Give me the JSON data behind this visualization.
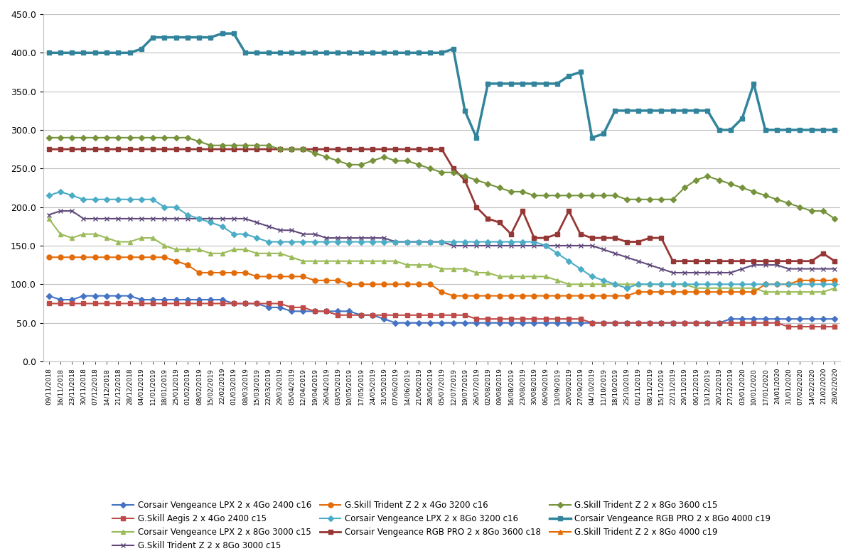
{
  "dates": [
    "09/11/2018",
    "16/11/2018",
    "23/11/2018",
    "30/11/2018",
    "07/12/2018",
    "14/12/2018",
    "21/12/2018",
    "28/12/2018",
    "04/01/2019",
    "11/01/2019",
    "18/01/2019",
    "25/01/2019",
    "01/02/2019",
    "08/02/2019",
    "15/02/2019",
    "22/02/2019",
    "01/03/2019",
    "08/03/2019",
    "15/03/2019",
    "22/03/2019",
    "29/03/2019",
    "05/04/2019",
    "12/04/2019",
    "19/04/2019",
    "26/04/2019",
    "03/05/2019",
    "10/05/2019",
    "17/05/2019",
    "24/05/2019",
    "31/05/2019",
    "07/06/2019",
    "14/06/2019",
    "21/06/2019",
    "28/06/2019",
    "05/07/2019",
    "12/07/2019",
    "19/07/2019",
    "26/07/2019",
    "02/08/2019",
    "09/08/2019",
    "16/08/2019",
    "23/08/2019",
    "30/08/2019",
    "06/09/2019",
    "13/09/2019",
    "20/09/2019",
    "27/09/2019",
    "04/10/2019",
    "11/10/2019",
    "18/10/2019",
    "25/10/2019",
    "01/11/2019",
    "08/11/2019",
    "15/11/2019",
    "22/11/2019",
    "29/11/2019",
    "06/12/2019",
    "13/12/2019",
    "20/12/2019",
    "27/12/2019",
    "03/01/2020",
    "10/01/2020",
    "17/01/2020",
    "24/01/2020",
    "31/01/2020",
    "07/02/2020",
    "14/02/2020",
    "21/02/2020",
    "28/02/2020"
  ],
  "series": [
    {
      "label": "Corsair Vengeance LPX 2 x 4Go 2400 c16",
      "color": "#4472C4",
      "marker": "D",
      "ms": 4,
      "lw": 1.5,
      "values": [
        85,
        80,
        80,
        85,
        85,
        85,
        85,
        85,
        80,
        80,
        80,
        80,
        80,
        80,
        80,
        80,
        75,
        75,
        75,
        70,
        70,
        65,
        65,
        65,
        65,
        65,
        65,
        60,
        60,
        55,
        50,
        50,
        50,
        50,
        50,
        50,
        50,
        50,
        50,
        50,
        50,
        50,
        50,
        50,
        50,
        50,
        50,
        50,
        50,
        50,
        50,
        50,
        50,
        50,
        50,
        50,
        50,
        50,
        50,
        55,
        55,
        55,
        55,
        55,
        55,
        55,
        55,
        55,
        55
      ]
    },
    {
      "label": "G.Skill Aegis 2 x 4Go 2400 c15",
      "color": "#BE4B48",
      "marker": "s",
      "ms": 4,
      "lw": 1.5,
      "values": [
        75,
        75,
        75,
        75,
        75,
        75,
        75,
        75,
        75,
        75,
        75,
        75,
        75,
        75,
        75,
        75,
        75,
        75,
        75,
        75,
        75,
        70,
        70,
        65,
        65,
        60,
        60,
        60,
        60,
        60,
        60,
        60,
        60,
        60,
        60,
        60,
        60,
        55,
        55,
        55,
        55,
        55,
        55,
        55,
        55,
        55,
        55,
        50,
        50,
        50,
        50,
        50,
        50,
        50,
        50,
        50,
        50,
        50,
        50,
        50,
        50,
        50,
        50,
        50,
        45,
        45,
        45,
        45,
        45
      ]
    },
    {
      "label": "Corsair Vengeance LPX 2 x 8Go 3000 c15",
      "color": "#9BBB59",
      "marker": "^",
      "ms": 5,
      "lw": 1.5,
      "values": [
        185,
        165,
        160,
        165,
        165,
        160,
        155,
        155,
        160,
        160,
        150,
        145,
        145,
        145,
        140,
        140,
        145,
        145,
        140,
        140,
        140,
        135,
        130,
        130,
        130,
        130,
        130,
        130,
        130,
        130,
        130,
        125,
        125,
        125,
        120,
        120,
        120,
        115,
        115,
        110,
        110,
        110,
        110,
        110,
        105,
        100,
        100,
        100,
        100,
        100,
        100,
        100,
        100,
        100,
        100,
        100,
        95,
        95,
        95,
        95,
        95,
        95,
        90,
        90,
        90,
        90,
        90,
        90,
        95
      ]
    },
    {
      "label": "G.Skill Trident Z 2 x 8Go 3000 c15",
      "color": "#604A7B",
      "marker": "x",
      "ms": 5,
      "lw": 1.5,
      "values": [
        190,
        195,
        195,
        185,
        185,
        185,
        185,
        185,
        185,
        185,
        185,
        185,
        185,
        185,
        185,
        185,
        185,
        185,
        180,
        175,
        170,
        170,
        165,
        165,
        160,
        160,
        160,
        160,
        160,
        160,
        155,
        155,
        155,
        155,
        155,
        150,
        150,
        150,
        150,
        150,
        150,
        150,
        150,
        150,
        150,
        150,
        150,
        150,
        145,
        140,
        135,
        130,
        125,
        120,
        115,
        115,
        115,
        115,
        115,
        115,
        120,
        125,
        125,
        125,
        120,
        120,
        120,
        120,
        120
      ]
    },
    {
      "label": "G.Skill Trident Z 2 x 4Go 3200 c16",
      "color": "#E36C09",
      "marker": "o",
      "ms": 5,
      "lw": 1.5,
      "values": [
        135,
        135,
        135,
        135,
        135,
        135,
        135,
        135,
        135,
        135,
        135,
        130,
        125,
        115,
        115,
        115,
        115,
        115,
        110,
        110,
        110,
        110,
        110,
        105,
        105,
        105,
        100,
        100,
        100,
        100,
        100,
        100,
        100,
        100,
        90,
        85,
        85,
        85,
        85,
        85,
        85,
        85,
        85,
        85,
        85,
        85,
        85,
        85,
        85,
        85,
        85,
        90,
        90,
        90,
        90,
        90,
        90,
        90,
        90,
        90,
        90,
        90,
        100,
        100,
        100,
        105,
        105,
        105,
        105
      ]
    },
    {
      "label": "Corsair Vengeance LPX 2 x 8Go 3200 c16",
      "color": "#4BACC6",
      "marker": "D",
      "ms": 4,
      "lw": 1.5,
      "values": [
        215,
        220,
        215,
        210,
        210,
        210,
        210,
        210,
        210,
        210,
        200,
        200,
        190,
        185,
        180,
        175,
        165,
        165,
        160,
        155,
        155,
        155,
        155,
        155,
        155,
        155,
        155,
        155,
        155,
        155,
        155,
        155,
        155,
        155,
        155,
        155,
        155,
        155,
        155,
        155,
        155,
        155,
        155,
        150,
        140,
        130,
        120,
        110,
        105,
        100,
        95,
        100,
        100,
        100,
        100,
        100,
        100,
        100,
        100,
        100,
        100,
        100,
        100,
        100,
        100,
        100,
        100,
        100,
        100
      ]
    },
    {
      "label": "Corsair Vengeance RGB PRO 2 x 8Go 3600 c18",
      "color": "#953735",
      "marker": "s",
      "ms": 4,
      "lw": 2.0,
      "values": [
        275,
        275,
        275,
        275,
        275,
        275,
        275,
        275,
        275,
        275,
        275,
        275,
        275,
        275,
        275,
        275,
        275,
        275,
        275,
        275,
        275,
        275,
        275,
        275,
        275,
        275,
        275,
        275,
        275,
        275,
        275,
        275,
        275,
        275,
        275,
        250,
        235,
        200,
        185,
        180,
        165,
        195,
        160,
        160,
        165,
        195,
        165,
        160,
        160,
        160,
        155,
        155,
        160,
        160,
        130,
        130,
        130,
        130,
        130,
        130,
        130,
        130,
        130,
        130,
        130,
        130,
        130,
        140,
        130
      ]
    },
    {
      "label": "G.Skill Trident Z 2 x 8Go 3600 c15",
      "color": "#76933C",
      "marker": "D",
      "ms": 4,
      "lw": 1.5,
      "values": [
        290,
        290,
        290,
        290,
        290,
        290,
        290,
        290,
        290,
        290,
        290,
        290,
        290,
        285,
        280,
        280,
        280,
        280,
        280,
        280,
        275,
        275,
        275,
        270,
        265,
        260,
        255,
        255,
        260,
        265,
        260,
        260,
        255,
        250,
        245,
        245,
        240,
        235,
        230,
        225,
        220,
        220,
        215,
        215,
        215,
        215,
        215,
        215,
        215,
        215,
        210,
        210,
        210,
        210,
        210,
        225,
        235,
        240,
        235,
        230,
        225,
        220,
        215,
        210,
        205,
        200,
        195,
        195,
        185
      ]
    },
    {
      "label": "Corsair Vengeance RGB PRO 2 x 8Go 4000 c19",
      "color": "#31849B",
      "marker": "s",
      "ms": 5,
      "lw": 2.5,
      "values": [
        400,
        400,
        400,
        400,
        400,
        400,
        400,
        400,
        405,
        420,
        420,
        420,
        420,
        420,
        420,
        425,
        425,
        400,
        400,
        400,
        400,
        400,
        400,
        400,
        400,
        400,
        400,
        400,
        400,
        400,
        400,
        400,
        400,
        400,
        400,
        405,
        325,
        290,
        360,
        360,
        360,
        360,
        360,
        360,
        360,
        370,
        375,
        290,
        295,
        325,
        325,
        325,
        325,
        325,
        325,
        325,
        325,
        325,
        300,
        300,
        315,
        360,
        300,
        300,
        300,
        300,
        300,
        300,
        300
      ]
    },
    {
      "label": "G.Skill Trident Z 2 x 8Go 4000 c19",
      "color": "#E46C00",
      "marker": "^",
      "ms": 5,
      "lw": 1.5,
      "values": [
        null,
        null,
        null,
        null,
        null,
        null,
        null,
        null,
        null,
        null,
        null,
        null,
        null,
        null,
        null,
        null,
        null,
        null,
        null,
        null,
        null,
        null,
        null,
        null,
        null,
        null,
        null,
        null,
        null,
        null,
        null,
        null,
        null,
        null,
        null,
        null,
        null,
        null,
        null,
        null,
        null,
        null,
        null,
        null,
        null,
        null,
        null,
        null,
        null,
        null,
        null,
        null,
        null,
        null,
        null,
        null,
        null,
        null,
        null,
        null,
        null,
        null,
        null,
        null,
        null,
        null,
        null,
        null,
        null
      ]
    }
  ],
  "ylim": [
    0,
    450
  ],
  "yticks": [
    0.0,
    50.0,
    100.0,
    150.0,
    200.0,
    250.0,
    300.0,
    350.0,
    400.0,
    450.0
  ],
  "background_color": "#FFFFFF",
  "grid_color": "#C0C0C0",
  "legend_ncol": 3,
  "legend_fontsize": 8.5
}
